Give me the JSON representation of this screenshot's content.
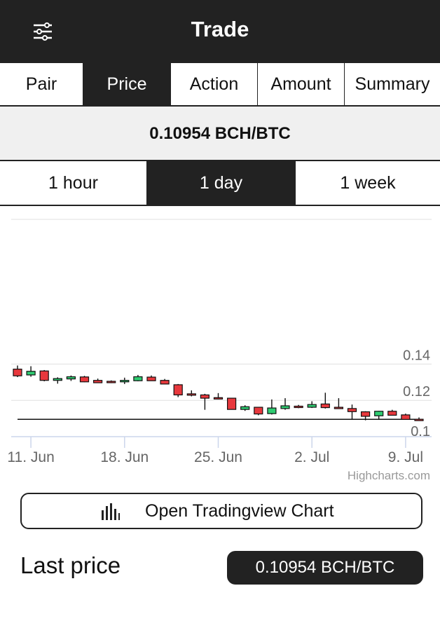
{
  "header": {
    "title": "Trade",
    "menu_icon": "sliders-icon"
  },
  "tabs": [
    {
      "label": "Pair",
      "active": false
    },
    {
      "label": "Price",
      "active": true
    },
    {
      "label": "Action",
      "active": false
    },
    {
      "label": "Amount",
      "active": false
    },
    {
      "label": "Summary",
      "active": false
    }
  ],
  "price_banner": "0.10954 BCH/BTC",
  "ranges": [
    {
      "label": "1 hour",
      "active": false
    },
    {
      "label": "1 day",
      "active": true
    },
    {
      "label": "1 week",
      "active": false
    }
  ],
  "chart_data": {
    "type": "candlestick",
    "colors": {
      "up": "#2ecc71",
      "down": "#e8383d",
      "grid": "#e0e0e0",
      "axis": "#ccd6eb"
    },
    "y_ticks": [
      "0.14",
      "0.12",
      "0.1"
    ],
    "ylim": [
      0.1,
      0.14
    ],
    "x_ticks": [
      "11. Jun",
      "18. Jun",
      "25. Jun",
      "2. Jul",
      "9. Jul"
    ],
    "reference_line": 0.10954,
    "credit": "Highcharts.com",
    "candles": [
      {
        "date": "10. Jun",
        "open": 0.1372,
        "high": 0.1392,
        "low": 0.1328,
        "close": 0.1335
      },
      {
        "date": "11. Jun",
        "open": 0.134,
        "high": 0.1388,
        "low": 0.133,
        "close": 0.136
      },
      {
        "date": "12. Jun",
        "open": 0.1362,
        "high": 0.1367,
        "low": 0.1305,
        "close": 0.131
      },
      {
        "date": "13. Jun",
        "open": 0.131,
        "high": 0.1327,
        "low": 0.1292,
        "close": 0.132
      },
      {
        "date": "14. Jun",
        "open": 0.1318,
        "high": 0.1337,
        "low": 0.1307,
        "close": 0.133
      },
      {
        "date": "15. Jun",
        "open": 0.1329,
        "high": 0.1335,
        "low": 0.13,
        "close": 0.1302
      },
      {
        "date": "16. Jun",
        "open": 0.131,
        "high": 0.132,
        "low": 0.1296,
        "close": 0.1297
      },
      {
        "date": "17. Jun",
        "open": 0.1305,
        "high": 0.131,
        "low": 0.1295,
        "close": 0.1299
      },
      {
        "date": "18. Jun",
        "open": 0.1302,
        "high": 0.1325,
        "low": 0.129,
        "close": 0.131
      },
      {
        "date": "19. Jun",
        "open": 0.1308,
        "high": 0.134,
        "low": 0.1305,
        "close": 0.133
      },
      {
        "date": "20. Jun",
        "open": 0.1328,
        "high": 0.1337,
        "low": 0.1307,
        "close": 0.1308
      },
      {
        "date": "21. Jun",
        "open": 0.131,
        "high": 0.1318,
        "low": 0.1288,
        "close": 0.129
      },
      {
        "date": "22. Jun",
        "open": 0.1286,
        "high": 0.129,
        "low": 0.1218,
        "close": 0.123
      },
      {
        "date": "23. Jun",
        "open": 0.1236,
        "high": 0.1255,
        "low": 0.1222,
        "close": 0.1232
      },
      {
        "date": "24. Jun",
        "open": 0.123,
        "high": 0.1236,
        "low": 0.1148,
        "close": 0.1212
      },
      {
        "date": "25. Jun",
        "open": 0.1215,
        "high": 0.124,
        "low": 0.1205,
        "close": 0.1212
      },
      {
        "date": "26. Jun",
        "open": 0.1212,
        "high": 0.1212,
        "low": 0.115,
        "close": 0.115
      },
      {
        "date": "27. Jun",
        "open": 0.115,
        "high": 0.1173,
        "low": 0.1142,
        "close": 0.1165
      },
      {
        "date": "28. Jun",
        "open": 0.1162,
        "high": 0.1163,
        "low": 0.1118,
        "close": 0.1125
      },
      {
        "date": "29. Jun",
        "open": 0.1127,
        "high": 0.1205,
        "low": 0.1122,
        "close": 0.1158
      },
      {
        "date": "30. Jun",
        "open": 0.1155,
        "high": 0.1212,
        "low": 0.1148,
        "close": 0.117
      },
      {
        "date": "1. Jul",
        "open": 0.1168,
        "high": 0.1175,
        "low": 0.1157,
        "close": 0.1162
      },
      {
        "date": "2. Jul",
        "open": 0.1162,
        "high": 0.1195,
        "low": 0.1158,
        "close": 0.1177
      },
      {
        "date": "3. Jul",
        "open": 0.118,
        "high": 0.1242,
        "low": 0.1155,
        "close": 0.116
      },
      {
        "date": "4. Jul",
        "open": 0.1162,
        "high": 0.1212,
        "low": 0.1155,
        "close": 0.1157
      },
      {
        "date": "5. Jul",
        "open": 0.1155,
        "high": 0.1177,
        "low": 0.1095,
        "close": 0.1138
      },
      {
        "date": "6. Jul",
        "open": 0.1137,
        "high": 0.114,
        "low": 0.109,
        "close": 0.1112
      },
      {
        "date": "7. Jul",
        "open": 0.1115,
        "high": 0.1142,
        "low": 0.1096,
        "close": 0.114
      },
      {
        "date": "8. Jul",
        "open": 0.114,
        "high": 0.1148,
        "low": 0.1117,
        "close": 0.1118
      },
      {
        "date": "9. Jul",
        "open": 0.112,
        "high": 0.1127,
        "low": 0.1093,
        "close": 0.1095
      },
      {
        "date": "10. Jul",
        "open": 0.1096,
        "high": 0.1106,
        "low": 0.1088,
        "close": 0.1095
      }
    ]
  },
  "tradingview_button": {
    "label": "Open Tradingview Chart",
    "icon": "bar-chart-icon"
  },
  "last_price": {
    "label": "Last price",
    "value": "0.10954 BCH/BTC"
  }
}
